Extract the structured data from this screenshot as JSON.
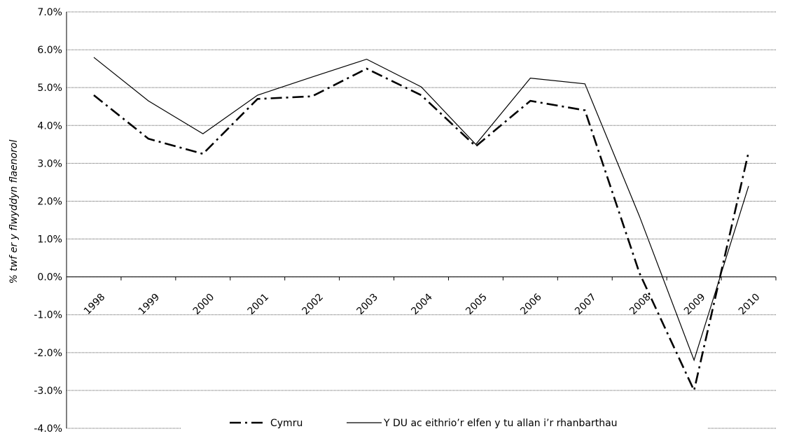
{
  "chart_data": {
    "type": "line",
    "title": "",
    "xlabel": "",
    "ylabel": "% twf er y flwyddyn flaenorol",
    "x": [
      "1998",
      "1999",
      "2000",
      "2001",
      "2002",
      "2003",
      "2004",
      "2005",
      "2006",
      "2007",
      "2008",
      "2009",
      "2010"
    ],
    "ylim": [
      -4.0,
      7.0
    ],
    "ytick_step": 1.0,
    "ytick_labels": [
      "-4.0%",
      "-3.0%",
      "-2.0%",
      "-1.0%",
      "0.0%",
      "1.0%",
      "2.0%",
      "3.0%",
      "4.0%",
      "5.0%",
      "6.0%",
      "7.0%"
    ],
    "grid": "horizontal dotted",
    "legend": "bottom",
    "series": [
      {
        "name": "Cymru",
        "style": "dash-dot",
        "color": "#000000",
        "values": [
          4.8,
          3.65,
          3.25,
          4.7,
          4.77,
          5.5,
          4.8,
          3.45,
          4.65,
          4.4,
          0.1,
          -3.0,
          3.3
        ]
      },
      {
        "name": "Y DU ac eithrio’r elfen y tu allan i’r rhanbarthau",
        "style": "solid",
        "color": "#000000",
        "values": [
          5.8,
          4.65,
          3.78,
          4.8,
          5.28,
          5.75,
          5.02,
          3.5,
          5.25,
          5.1,
          1.6,
          -2.2,
          2.4
        ]
      }
    ]
  }
}
